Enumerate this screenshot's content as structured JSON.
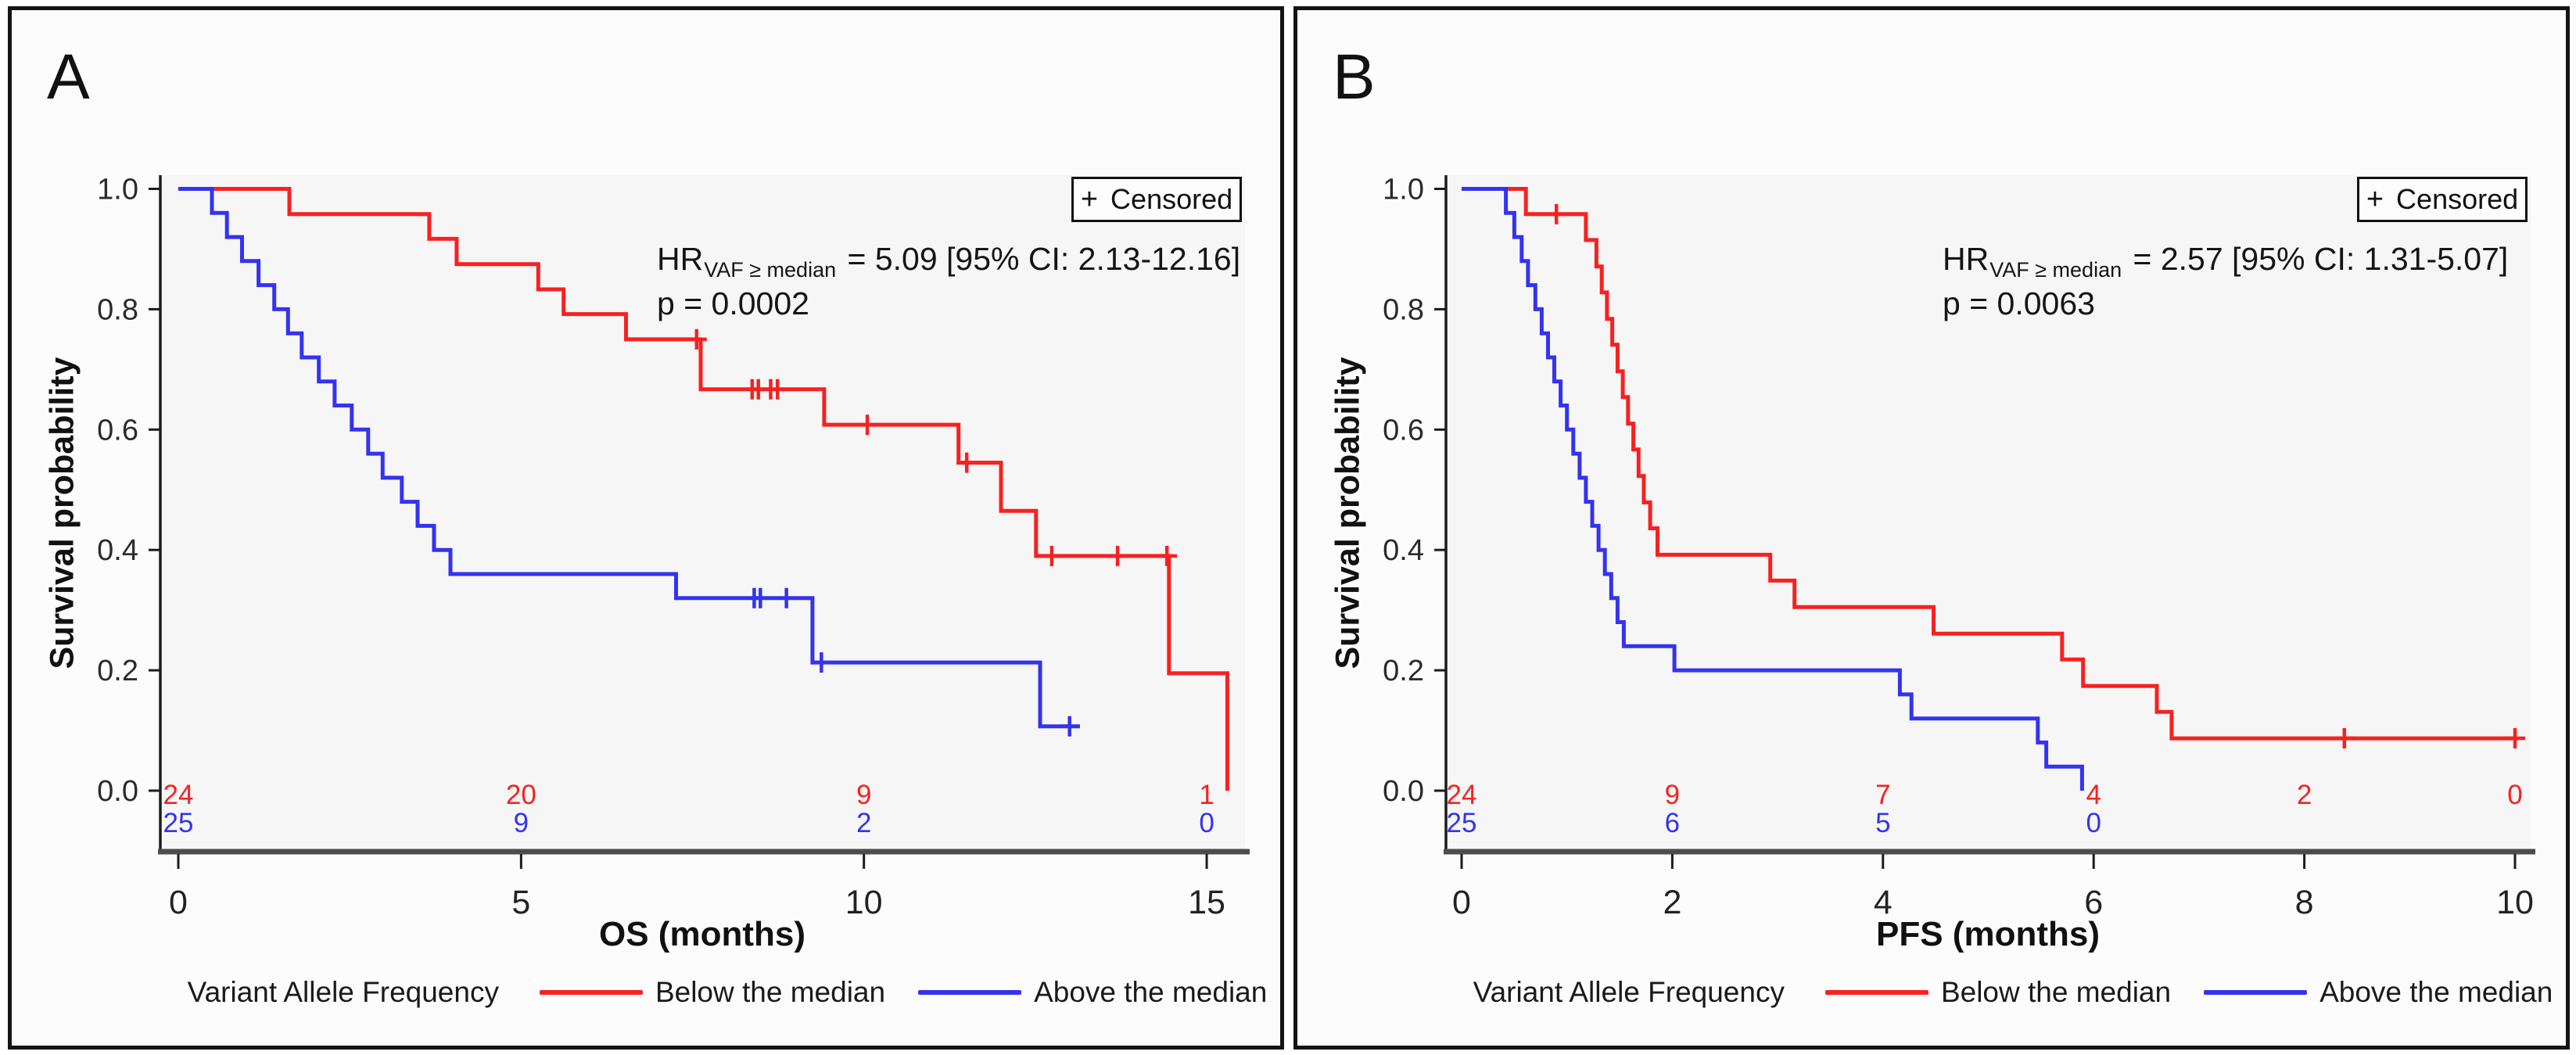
{
  "figure": {
    "background": "#ffffff",
    "panel_border_color": "#141414",
    "wall_color": "#f6f6f6"
  },
  "colors": {
    "red": "#f72121",
    "blue": "#3333f0"
  },
  "panels": [
    {
      "label": "A",
      "censored": {
        "symbol": "+",
        "label": "Censored"
      },
      "annotation": {
        "hr_prefix": "HR",
        "hr_subscript": "VAF ≥ median",
        "hr_value": "= 5.09 [95% CI: 2.13-12.16]",
        "p_value": "p = 0.0002"
      },
      "y_axis": {
        "title": "Survival probability",
        "ticks": [
          {
            "value": 1.0,
            "label": "1.0"
          },
          {
            "value": 0.8,
            "label": "0.8"
          },
          {
            "value": 0.6,
            "label": "0.6"
          },
          {
            "value": 0.4,
            "label": "0.4"
          },
          {
            "value": 0.2,
            "label": "0.2"
          },
          {
            "value": 0.0,
            "label": "0.0"
          }
        ]
      },
      "x_axis": {
        "title": "OS (months)",
        "max": 15.45,
        "ticks": [
          {
            "value": 0,
            "label": "0"
          },
          {
            "value": 5,
            "label": "5"
          },
          {
            "value": 10,
            "label": "10"
          },
          {
            "value": 15,
            "label": "15"
          }
        ]
      },
      "risk_table": {
        "rows": [
          {
            "series": "Below the median",
            "color_key": "red",
            "times": [
              0,
              5,
              10,
              15
            ],
            "counts": [
              "24",
              "20",
              "9",
              "1"
            ]
          },
          {
            "series": "Above the median",
            "color_key": "blue",
            "times": [
              0,
              5,
              10,
              15
            ],
            "counts": [
              "25",
              "9",
              "2",
              "0"
            ]
          }
        ]
      },
      "legend": {
        "title": "Variant Allele Frequency",
        "entries": [
          {
            "label": "Below the median",
            "color_key": "red"
          },
          {
            "label": "Above the median",
            "color_key": "blue"
          }
        ]
      },
      "chart_data": {
        "type": "km_step",
        "x_unit": "months",
        "xlabel": "OS (months)",
        "ylabel": "Survival probability",
        "xlim": [
          0,
          15.45
        ],
        "ylim": [
          0,
          1
        ],
        "series": [
          {
            "name": "Below the median",
            "color_key": "red",
            "start": [
              0,
              1.0
            ],
            "events": [
              [
                1.62,
                0.958
              ],
              [
                3.66,
                0.917
              ],
              [
                4.06,
                0.875
              ],
              [
                5.25,
                0.833
              ],
              [
                5.62,
                0.792
              ],
              [
                6.53,
                0.75
              ],
              [
                7.62,
                0.667
              ],
              [
                9.42,
                0.608
              ],
              [
                11.38,
                0.545
              ],
              [
                12.0,
                0.465
              ],
              [
                12.51,
                0.39
              ],
              [
                14.45,
                0.195
              ],
              [
                15.3,
                0.0
              ]
            ],
            "censors": [
              [
                7.56,
                0.75
              ],
              [
                8.37,
                0.667
              ],
              [
                8.46,
                0.667
              ],
              [
                8.64,
                0.667
              ],
              [
                8.74,
                0.667
              ],
              [
                10.05,
                0.608
              ],
              [
                11.5,
                0.545
              ],
              [
                12.74,
                0.39
              ],
              [
                13.7,
                0.39
              ],
              [
                14.42,
                0.39
              ]
            ],
            "end_time": 15.3
          },
          {
            "name": "Above the median",
            "color_key": "blue",
            "start": [
              0,
              1.0
            ],
            "events": [
              [
                0.49,
                0.96
              ],
              [
                0.71,
                0.92
              ],
              [
                0.93,
                0.88
              ],
              [
                1.17,
                0.84
              ],
              [
                1.4,
                0.8
              ],
              [
                1.6,
                0.76
              ],
              [
                1.8,
                0.72
              ],
              [
                2.05,
                0.68
              ],
              [
                2.28,
                0.64
              ],
              [
                2.53,
                0.6
              ],
              [
                2.77,
                0.56
              ],
              [
                2.98,
                0.52
              ],
              [
                3.26,
                0.48
              ],
              [
                3.49,
                0.44
              ],
              [
                3.73,
                0.4
              ],
              [
                3.97,
                0.36
              ],
              [
                7.26,
                0.32
              ],
              [
                9.25,
                0.213
              ],
              [
                12.57,
                0.107
              ]
            ],
            "censors": [
              [
                8.4,
                0.32
              ],
              [
                8.49,
                0.32
              ],
              [
                8.87,
                0.32
              ],
              [
                9.38,
                0.213
              ],
              [
                13.0,
                0.107
              ]
            ],
            "end_time": 13.15
          }
        ]
      }
    },
    {
      "label": "B",
      "censored": {
        "symbol": "+",
        "label": "Censored"
      },
      "annotation": {
        "hr_prefix": "HR",
        "hr_subscript": "VAF ≥ median",
        "hr_value": "= 2.57 [95% CI: 1.31-5.07]",
        "p_value": "p = 0.0063"
      },
      "y_axis": {
        "title": "Survival probability",
        "ticks": [
          {
            "value": 1.0,
            "label": "1.0"
          },
          {
            "value": 0.8,
            "label": "0.8"
          },
          {
            "value": 0.6,
            "label": "0.6"
          },
          {
            "value": 0.4,
            "label": "0.4"
          },
          {
            "value": 0.2,
            "label": "0.2"
          },
          {
            "value": 0.0,
            "label": "0.0"
          }
        ]
      },
      "x_axis": {
        "title": "PFS (months)",
        "max": 10.15,
        "ticks": [
          {
            "value": 0,
            "label": "0"
          },
          {
            "value": 2,
            "label": "2"
          },
          {
            "value": 4,
            "label": "4"
          },
          {
            "value": 6,
            "label": "6"
          },
          {
            "value": 8,
            "label": "8"
          },
          {
            "value": 10,
            "label": "10"
          }
        ]
      },
      "risk_table": {
        "rows": [
          {
            "series": "Below the median",
            "color_key": "red",
            "times": [
              0,
              2,
              4,
              6,
              8,
              10
            ],
            "counts": [
              "24",
              "9",
              "7",
              "4",
              "2",
              "0"
            ]
          },
          {
            "series": "Above the median",
            "color_key": "blue",
            "times": [
              0,
              2,
              4,
              6
            ],
            "counts": [
              "25",
              "6",
              "5",
              "0"
            ]
          }
        ]
      },
      "legend": {
        "title": "Variant Allele Frequency",
        "entries": [
          {
            "label": "Below the median",
            "color_key": "red"
          },
          {
            "label": "Above the median",
            "color_key": "blue"
          }
        ]
      },
      "chart_data": {
        "type": "km_step",
        "x_unit": "months",
        "xlabel": "PFS (months)",
        "ylabel": "Survival probability",
        "xlim": [
          0,
          10.15
        ],
        "ylim": [
          0,
          1
        ],
        "series": [
          {
            "name": "Below the median",
            "color_key": "red",
            "start": [
              0,
              1.0
            ],
            "events": [
              [
                0.61,
                0.958
              ],
              [
                1.18,
                0.915
              ],
              [
                1.28,
                0.871
              ],
              [
                1.33,
                0.828
              ],
              [
                1.38,
                0.784
              ],
              [
                1.43,
                0.741
              ],
              [
                1.48,
                0.697
              ],
              [
                1.53,
                0.654
              ],
              [
                1.58,
                0.61
              ],
              [
                1.63,
                0.567
              ],
              [
                1.68,
                0.523
              ],
              [
                1.73,
                0.479
              ],
              [
                1.79,
                0.436
              ],
              [
                1.86,
                0.392
              ],
              [
                2.93,
                0.349
              ],
              [
                3.16,
                0.305
              ],
              [
                4.48,
                0.261
              ],
              [
                5.7,
                0.218
              ],
              [
                5.9,
                0.174
              ],
              [
                6.6,
                0.131
              ],
              [
                6.74,
                0.087
              ]
            ],
            "censors": [
              [
                0.9,
                0.958
              ],
              [
                8.38,
                0.087
              ],
              [
                10.0,
                0.087
              ]
            ],
            "end_time": 10.02
          },
          {
            "name": "Above the median",
            "color_key": "blue",
            "start": [
              0,
              1.0
            ],
            "events": [
              [
                0.42,
                0.96
              ],
              [
                0.5,
                0.92
              ],
              [
                0.57,
                0.88
              ],
              [
                0.63,
                0.84
              ],
              [
                0.7,
                0.8
              ],
              [
                0.76,
                0.76
              ],
              [
                0.82,
                0.72
              ],
              [
                0.88,
                0.68
              ],
              [
                0.94,
                0.64
              ],
              [
                1.0,
                0.6
              ],
              [
                1.06,
                0.56
              ],
              [
                1.12,
                0.52
              ],
              [
                1.18,
                0.48
              ],
              [
                1.24,
                0.44
              ],
              [
                1.3,
                0.4
              ],
              [
                1.36,
                0.36
              ],
              [
                1.42,
                0.32
              ],
              [
                1.48,
                0.28
              ],
              [
                1.54,
                0.24
              ],
              [
                2.02,
                0.2
              ],
              [
                4.16,
                0.16
              ],
              [
                4.27,
                0.12
              ],
              [
                5.47,
                0.08
              ],
              [
                5.55,
                0.04
              ],
              [
                5.89,
                0.0
              ]
            ],
            "censors": [],
            "end_time": 5.89
          }
        ]
      }
    }
  ]
}
